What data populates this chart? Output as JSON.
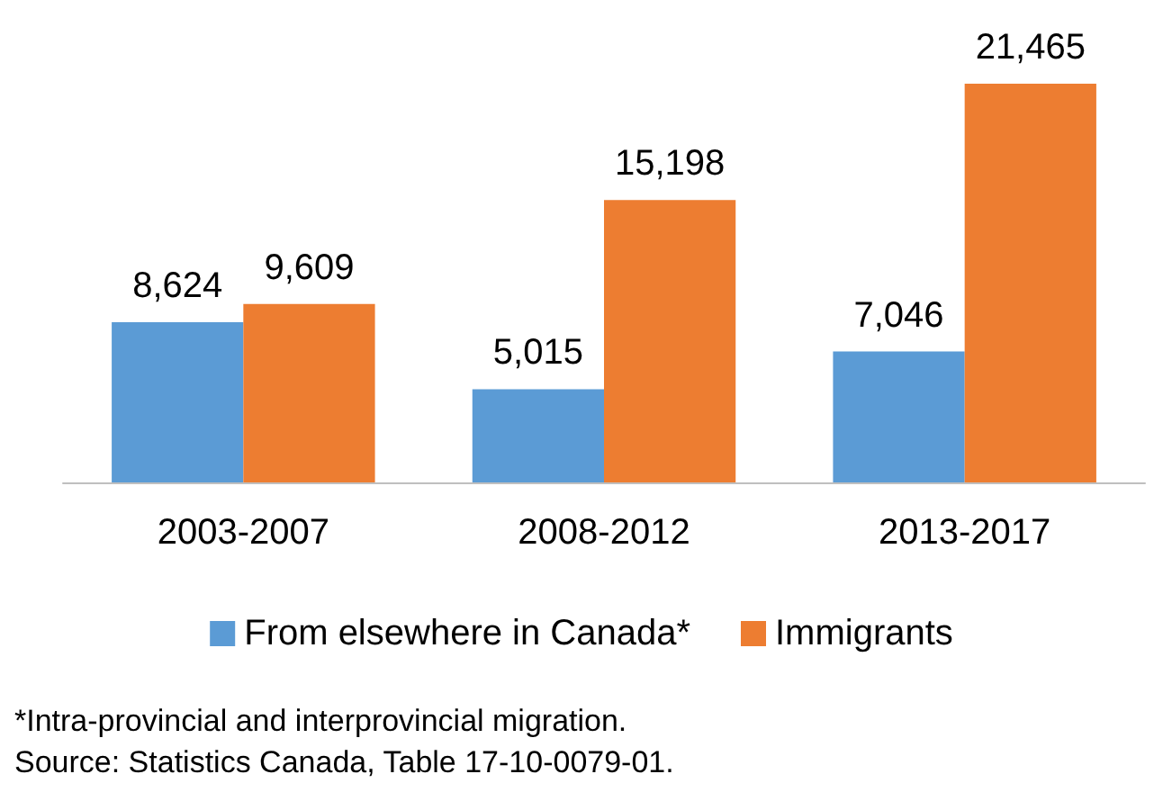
{
  "chart_data": {
    "type": "bar",
    "categories": [
      "2003-2007",
      "2008-2012",
      "2013-2017"
    ],
    "series": [
      {
        "name": "From elsewhere in Canada*",
        "color": "#5b9bd5",
        "values": [
          8624,
          5015,
          7046
        ],
        "value_labels": [
          "8,624",
          "5,015",
          "7,046"
        ]
      },
      {
        "name": "Immigrants",
        "color": "#ed7d31",
        "values": [
          9609,
          15198,
          21465
        ],
        "value_labels": [
          "9,609",
          "15,198",
          "21,465"
        ]
      }
    ],
    "legend": "bottom",
    "annotations": [
      "*Intra-provincial and interprovincial migration.",
      "Source: Statistics Canada, Table 17-10-0079-01."
    ]
  }
}
